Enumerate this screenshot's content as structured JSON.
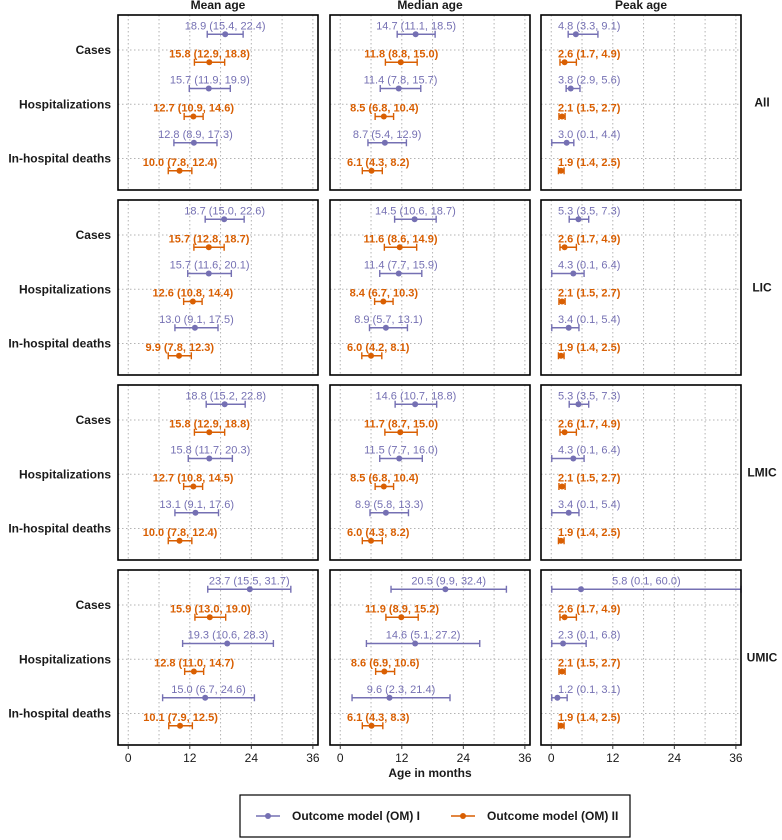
{
  "chart_data": {
    "type": "forest",
    "xlabel": "Age in months",
    "xlim": [
      -2,
      37
    ],
    "xticks": [
      0,
      12,
      24,
      36
    ],
    "grid": "dotted",
    "columns": [
      "Mean age",
      "Median age",
      "Peak age"
    ],
    "rows": [
      "All",
      "LIC",
      "LMIC",
      "UMIC"
    ],
    "outcomes": [
      "Cases",
      "Hospitalizations",
      "In-hospital deaths"
    ],
    "series": [
      {
        "name": "Outcome model (OM) I",
        "color": "#7570b3"
      },
      {
        "name": "Outcome model (OM) II",
        "color": "#d95f02"
      }
    ],
    "panels": [
      [
        [
          [
            [
              18.9,
              15.4,
              22.4,
              "18.9 (15.4, 22.4)"
            ],
            [
              15.8,
              12.9,
              18.8,
              "15.8 (12.9, 18.8)"
            ]
          ],
          [
            [
              15.7,
              11.9,
              19.9,
              "15.7 (11.9, 19.9)"
            ],
            [
              12.7,
              10.9,
              14.6,
              "12.7 (10.9, 14.6)"
            ]
          ],
          [
            [
              12.8,
              8.9,
              17.3,
              "12.8 (8.9, 17.3)"
            ],
            [
              10.0,
              7.8,
              12.4,
              "10.0 (7.8, 12.4)"
            ]
          ]
        ],
        [
          [
            [
              14.7,
              11.1,
              18.5,
              "14.7 (11.1, 18.5)"
            ],
            [
              11.8,
              8.8,
              15.0,
              "11.8 (8.8, 15.0)"
            ]
          ],
          [
            [
              11.4,
              7.8,
              15.7,
              "11.4 (7.8, 15.7)"
            ],
            [
              8.5,
              6.8,
              10.4,
              "8.5 (6.8, 10.4)"
            ]
          ],
          [
            [
              8.7,
              5.4,
              12.9,
              "8.7 (5.4, 12.9)"
            ],
            [
              6.1,
              4.3,
              8.2,
              "6.1 (4.3, 8.2)"
            ]
          ]
        ],
        [
          [
            [
              4.8,
              3.3,
              9.1,
              "4.8 (3.3, 9.1)"
            ],
            [
              2.6,
              1.7,
              4.9,
              "2.6 (1.7, 4.9)"
            ]
          ],
          [
            [
              3.8,
              2.9,
              5.6,
              "3.8 (2.9, 5.6)"
            ],
            [
              2.1,
              1.5,
              2.7,
              "2.1 (1.5, 2.7)"
            ]
          ],
          [
            [
              3.0,
              0.1,
              4.4,
              "3.0 (0.1, 4.4)"
            ],
            [
              1.9,
              1.4,
              2.5,
              "1.9 (1.4, 2.5)"
            ]
          ]
        ]
      ],
      [
        [
          [
            [
              18.7,
              15.0,
              22.6,
              "18.7 (15.0, 22.6)"
            ],
            [
              15.7,
              12.8,
              18.7,
              "15.7 (12.8, 18.7)"
            ]
          ],
          [
            [
              15.7,
              11.6,
              20.1,
              "15.7 (11.6, 20.1)"
            ],
            [
              12.6,
              10.8,
              14.4,
              "12.6 (10.8, 14.4)"
            ]
          ],
          [
            [
              13.0,
              9.1,
              17.5,
              "13.0 (9.1, 17.5)"
            ],
            [
              9.9,
              7.8,
              12.3,
              "9.9 (7.8, 12.3)"
            ]
          ]
        ],
        [
          [
            [
              14.5,
              10.6,
              18.7,
              "14.5 (10.6, 18.7)"
            ],
            [
              11.6,
              8.6,
              14.9,
              "11.6 (8.6, 14.9)"
            ]
          ],
          [
            [
              11.4,
              7.7,
              15.9,
              "11.4 (7.7, 15.9)"
            ],
            [
              8.4,
              6.7,
              10.3,
              "8.4 (6.7, 10.3)"
            ]
          ],
          [
            [
              8.9,
              5.7,
              13.1,
              "8.9 (5.7, 13.1)"
            ],
            [
              6.0,
              4.2,
              8.1,
              "6.0 (4.2, 8.1)"
            ]
          ]
        ],
        [
          [
            [
              5.3,
              3.5,
              7.3,
              "5.3 (3.5, 7.3)"
            ],
            [
              2.6,
              1.7,
              4.9,
              "2.6 (1.7, 4.9)"
            ]
          ],
          [
            [
              4.3,
              0.1,
              6.4,
              "4.3 (0.1, 6.4)"
            ],
            [
              2.1,
              1.5,
              2.7,
              "2.1 (1.5, 2.7)"
            ]
          ],
          [
            [
              3.4,
              0.1,
              5.4,
              "3.4 (0.1, 5.4)"
            ],
            [
              1.9,
              1.4,
              2.5,
              "1.9 (1.4, 2.5)"
            ]
          ]
        ]
      ],
      [
        [
          [
            [
              18.8,
              15.2,
              22.8,
              "18.8 (15.2, 22.8)"
            ],
            [
              15.8,
              12.9,
              18.8,
              "15.8 (12.9, 18.8)"
            ]
          ],
          [
            [
              15.8,
              11.7,
              20.3,
              "15.8 (11.7, 20.3)"
            ],
            [
              12.7,
              10.8,
              14.5,
              "12.7 (10.8, 14.5)"
            ]
          ],
          [
            [
              13.1,
              9.1,
              17.6,
              "13.1 (9.1, 17.6)"
            ],
            [
              10.0,
              7.8,
              12.4,
              "10.0 (7.8, 12.4)"
            ]
          ]
        ],
        [
          [
            [
              14.6,
              10.7,
              18.8,
              "14.6 (10.7, 18.8)"
            ],
            [
              11.7,
              8.7,
              15.0,
              "11.7 (8.7, 15.0)"
            ]
          ],
          [
            [
              11.5,
              7.7,
              16.0,
              "11.5 (7.7, 16.0)"
            ],
            [
              8.5,
              6.8,
              10.4,
              "8.5 (6.8, 10.4)"
            ]
          ],
          [
            [
              8.9,
              5.8,
              13.3,
              "8.9 (5.8, 13.3)"
            ],
            [
              6.0,
              4.3,
              8.2,
              "6.0 (4.3, 8.2)"
            ]
          ]
        ],
        [
          [
            [
              5.3,
              3.5,
              7.3,
              "5.3 (3.5, 7.3)"
            ],
            [
              2.6,
              1.7,
              4.9,
              "2.6 (1.7, 4.9)"
            ]
          ],
          [
            [
              4.3,
              0.1,
              6.4,
              "4.3 (0.1, 6.4)"
            ],
            [
              2.1,
              1.5,
              2.7,
              "2.1 (1.5, 2.7)"
            ]
          ],
          [
            [
              3.4,
              0.1,
              5.4,
              "3.4 (0.1, 5.4)"
            ],
            [
              1.9,
              1.4,
              2.5,
              "1.9 (1.4, 2.5)"
            ]
          ]
        ]
      ],
      [
        [
          [
            [
              23.7,
              15.5,
              31.7,
              "23.7 (15.5, 31.7)"
            ],
            [
              15.9,
              13.0,
              19.0,
              "15.9 (13.0, 19.0)"
            ]
          ],
          [
            [
              19.3,
              10.6,
              28.3,
              "19.3 (10.6, 28.3)"
            ],
            [
              12.8,
              11.0,
              14.7,
              "12.8 (11.0, 14.7)"
            ]
          ],
          [
            [
              15.0,
              6.7,
              24.6,
              "15.0 (6.7, 24.6)"
            ],
            [
              10.1,
              7.9,
              12.5,
              "10.1 (7.9, 12.5)"
            ]
          ]
        ],
        [
          [
            [
              20.5,
              9.9,
              32.4,
              "20.5 (9.9, 32.4)"
            ],
            [
              11.9,
              8.9,
              15.2,
              "11.9 (8.9, 15.2)"
            ]
          ],
          [
            [
              14.6,
              5.1,
              27.2,
              "14.6 (5.1, 27.2)"
            ],
            [
              8.6,
              6.9,
              10.6,
              "8.6 (6.9, 10.6)"
            ]
          ],
          [
            [
              9.6,
              2.3,
              21.4,
              "9.6 (2.3, 21.4)"
            ],
            [
              6.1,
              4.3,
              8.3,
              "6.1 (4.3, 8.3)"
            ]
          ]
        ],
        [
          [
            [
              5.8,
              0.1,
              60.0,
              "5.8 (0.1, 60.0)"
            ],
            [
              2.6,
              1.7,
              4.9,
              "2.6 (1.7, 4.9)"
            ]
          ],
          [
            [
              2.3,
              0.1,
              6.8,
              "2.3 (0.1, 6.8)"
            ],
            [
              2.1,
              1.5,
              2.7,
              "2.1 (1.5, 2.7)"
            ]
          ],
          [
            [
              1.2,
              0.1,
              3.1,
              "1.2 (0.1, 3.1)"
            ],
            [
              1.9,
              1.4,
              2.5,
              "1.9 (1.4, 2.5)"
            ]
          ]
        ]
      ]
    ]
  }
}
